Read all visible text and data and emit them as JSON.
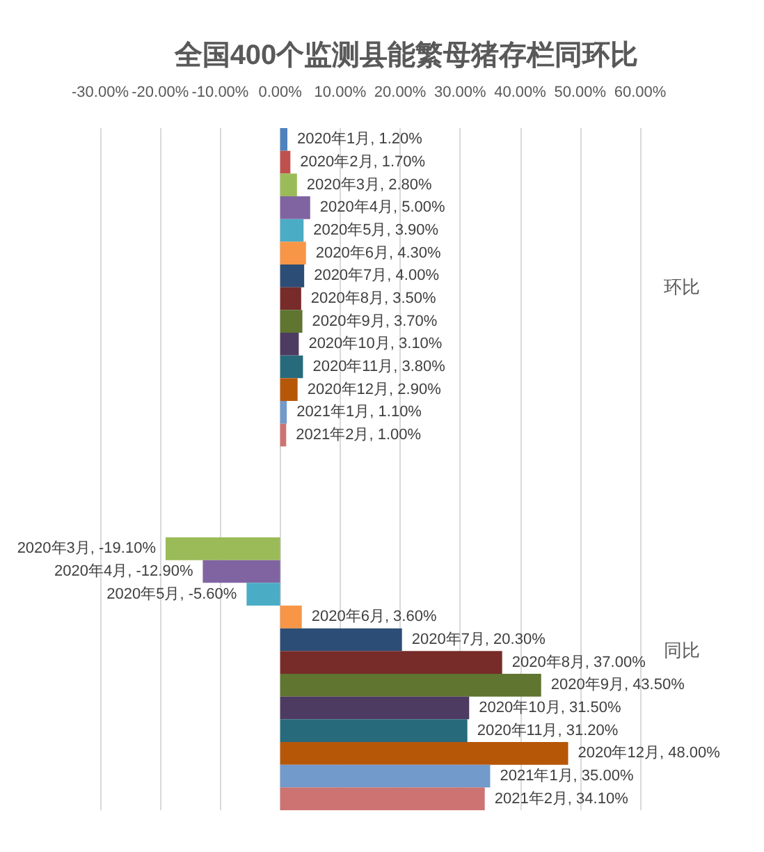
{
  "chart_data": {
    "type": "bar",
    "orientation": "horizontal",
    "title": "全国400个监测县能繁母猪存栏同环比",
    "categories": [
      null,
      null,
      null,
      null,
      null,
      null,
      null,
      null,
      null,
      null,
      null,
      null,
      null,
      null,
      null,
      null,
      null,
      null,
      null,
      null,
      null,
      null,
      null,
      null,
      null,
      null,
      null,
      null,
      null,
      null
    ],
    "series": [
      {
        "name": "环比",
        "values": [
          1.2,
          1.7,
          2.8,
          5.0,
          3.9,
          4.3,
          4.0,
          3.5,
          3.7,
          3.1,
          3.8,
          2.9,
          1.1,
          1.0,
          null,
          null,
          null,
          null,
          null,
          null,
          null,
          null,
          null,
          null,
          null,
          null,
          null,
          null,
          null,
          null
        ],
        "colors": [
          "#4f81bd",
          "#c0504d",
          "#9bbb59",
          "#8064a2",
          "#4bacc6",
          "#f79646",
          "#2c4d75",
          "#772c2a",
          "#5f7530",
          "#4d3b62",
          "#276a7c",
          "#b65708",
          "#729aca",
          "#cd7371",
          null,
          null,
          null,
          null,
          null,
          null,
          null,
          null,
          null,
          null,
          null,
          null,
          null,
          null,
          null,
          null
        ],
        "value_labels": [
          "2020年1月, 1.20%",
          "2020年2月, 1.70%",
          "2020年3月, 2.80%",
          "2020年4月, 5.00%",
          "2020年5月, 3.90%",
          "2020年6月, 4.30%",
          "2020年7月, 4.00%",
          "2020年8月, 3.50%",
          "2020年9月, 3.70%",
          "2020年10月, 3.10%",
          "2020年11月, 3.80%",
          "2020年12月, 2.90%",
          "2021年1月, 1.10%",
          "2021年2月, 1.00%",
          null,
          null,
          null,
          null,
          null,
          null,
          null,
          null,
          null,
          null,
          null,
          null,
          null,
          null,
          null,
          null
        ]
      },
      {
        "name": "同比",
        "values": [
          null,
          null,
          null,
          null,
          null,
          null,
          null,
          null,
          null,
          null,
          null,
          null,
          null,
          null,
          null,
          null,
          null,
          null,
          -19.1,
          -12.9,
          -5.6,
          3.6,
          20.3,
          37.0,
          43.5,
          31.5,
          31.2,
          48.0,
          35.0,
          34.1
        ],
        "colors": [
          null,
          null,
          null,
          null,
          null,
          null,
          null,
          null,
          null,
          null,
          null,
          null,
          null,
          null,
          null,
          null,
          null,
          null,
          "#9bbb59",
          "#8064a2",
          "#4bacc6",
          "#f79646",
          "#2c4d75",
          "#772c2a",
          "#5f7530",
          "#4d3b62",
          "#276a7c",
          "#b65708",
          "#729aca",
          "#cd7371"
        ],
        "value_labels": [
          null,
          null,
          null,
          null,
          null,
          null,
          null,
          null,
          null,
          null,
          null,
          null,
          null,
          null,
          null,
          null,
          null,
          null,
          "2020年3月, -19.10%",
          "2020年4月, -12.90%",
          "2020年5月, -5.60%",
          "2020年6月, 3.60%",
          "2020年7月, 20.30%",
          "2020年8月, 37.00%",
          "2020年9月, 43.50%",
          "2020年10月, 31.50%",
          "2020年11月, 31.20%",
          "2020年12月, 48.00%",
          "2021年1月, 35.00%",
          "2021年2月, 34.10%"
        ]
      }
    ],
    "xlim": [
      -30,
      60
    ],
    "xticks": [
      {
        "value": -30,
        "label": "-30.00%"
      },
      {
        "value": -20,
        "label": "-20.00%"
      },
      {
        "value": -10,
        "label": "-10.00%"
      },
      {
        "value": 0,
        "label": "0.00%"
      },
      {
        "value": 10,
        "label": "10.00%"
      },
      {
        "value": 20,
        "label": "20.00%"
      },
      {
        "value": 30,
        "label": "30.00%"
      },
      {
        "value": 40,
        "label": "40.00%"
      },
      {
        "value": 50,
        "label": "50.00%"
      },
      {
        "value": 60,
        "label": "60.00%"
      }
    ],
    "grid": "x",
    "tick_labels": "x"
  }
}
